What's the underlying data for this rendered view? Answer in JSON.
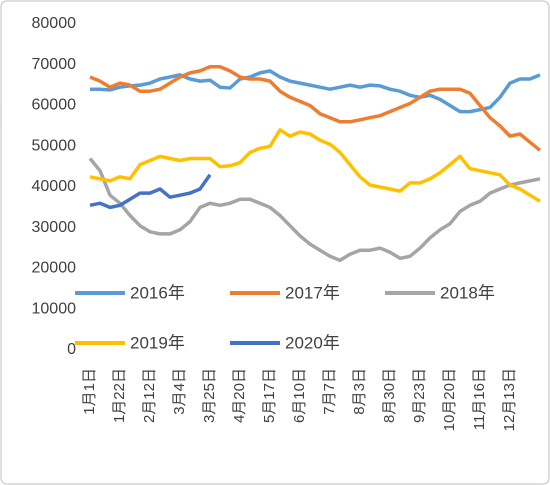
{
  "chart_data": {
    "type": "line",
    "categories": [
      "1月1日",
      null,
      null,
      "1月22日",
      null,
      null,
      "2月12日",
      null,
      null,
      "3月4日",
      null,
      null,
      "3月25日",
      null,
      null,
      "4月20日",
      null,
      null,
      "5月17日",
      null,
      null,
      "6月10日",
      null,
      null,
      "7月7日",
      null,
      null,
      "8月3日",
      null,
      null,
      "8月30日",
      null,
      null,
      "9月23日",
      null,
      null,
      "10月20日",
      null,
      null,
      "11月16日",
      null,
      null,
      "12月13日",
      null,
      null,
      null
    ],
    "series": [
      {
        "name": "2016年",
        "color": "#5b9bd5",
        "values": [
          64000,
          64000,
          63800,
          64500,
          64800,
          65000,
          65500,
          66500,
          67000,
          67500,
          66500,
          66000,
          66200,
          64500,
          64300,
          66500,
          67000,
          68000,
          68500,
          67000,
          66000,
          65500,
          65000,
          64500,
          64000,
          64500,
          65000,
          64500,
          65000,
          64800,
          64000,
          63500,
          62500,
          62000,
          62500,
          61500,
          60000,
          58500,
          58500,
          59000,
          59500,
          62000,
          65500,
          66500,
          66500,
          67500
        ]
      },
      {
        "name": "2017年",
        "color": "#ed7d31",
        "values": [
          67000,
          66000,
          64500,
          65500,
          65000,
          63500,
          63500,
          64000,
          65500,
          67000,
          68000,
          68500,
          69500,
          69500,
          68500,
          67000,
          66500,
          66500,
          66000,
          63500,
          62000,
          61000,
          60000,
          58000,
          57000,
          56000,
          56000,
          56500,
          57000,
          57500,
          58500,
          59500,
          60500,
          62000,
          63500,
          64000,
          64000,
          64000,
          63000,
          60000,
          57000,
          55000,
          52500,
          53000,
          51000,
          49000
        ]
      },
      {
        "name": "2018年",
        "color": "#a5a5a5",
        "values": [
          47000,
          44000,
          38000,
          36000,
          33000,
          30500,
          29000,
          28500,
          28500,
          29500,
          31500,
          35000,
          36000,
          35500,
          36000,
          37000,
          37000,
          36000,
          35000,
          33000,
          30500,
          28000,
          26000,
          24500,
          23000,
          22000,
          23500,
          24500,
          24500,
          25000,
          24000,
          22500,
          23000,
          25000,
          27500,
          29500,
          31000,
          34000,
          35500,
          36500,
          38500,
          39500,
          40500,
          41000,
          41500,
          42000
        ]
      },
      {
        "name": "2019年",
        "color": "#ffc000",
        "values": [
          42500,
          42000,
          41500,
          42500,
          42000,
          45500,
          46500,
          47500,
          47000,
          46500,
          47000,
          47000,
          47000,
          45000,
          45200,
          46000,
          48500,
          49500,
          50000,
          54000,
          52500,
          53500,
          53000,
          51500,
          50500,
          48500,
          45500,
          42500,
          40500,
          40000,
          39500,
          39000,
          41000,
          41000,
          42000,
          43500,
          45500,
          47500,
          44500,
          44000,
          43500,
          43000,
          40500,
          39500,
          38000,
          36500
        ]
      },
      {
        "name": "2020年",
        "color": "#4472c4",
        "values": [
          35500,
          36000,
          35000,
          35500,
          37000,
          38500,
          38500,
          39500,
          37500,
          38000,
          38500,
          39500,
          43000,
          null,
          null,
          null,
          null,
          null,
          null,
          null,
          null,
          null,
          null,
          null,
          null,
          null,
          null,
          null,
          null,
          null,
          null,
          null,
          null,
          null,
          null,
          null,
          null,
          null,
          null,
          null,
          null,
          null,
          null,
          null,
          null,
          null
        ]
      }
    ],
    "ylim": [
      0,
      80000
    ],
    "yticks": [
      0,
      10000,
      20000,
      30000,
      40000,
      50000,
      60000,
      70000,
      80000
    ],
    "grid": false,
    "legend": "bottom"
  }
}
